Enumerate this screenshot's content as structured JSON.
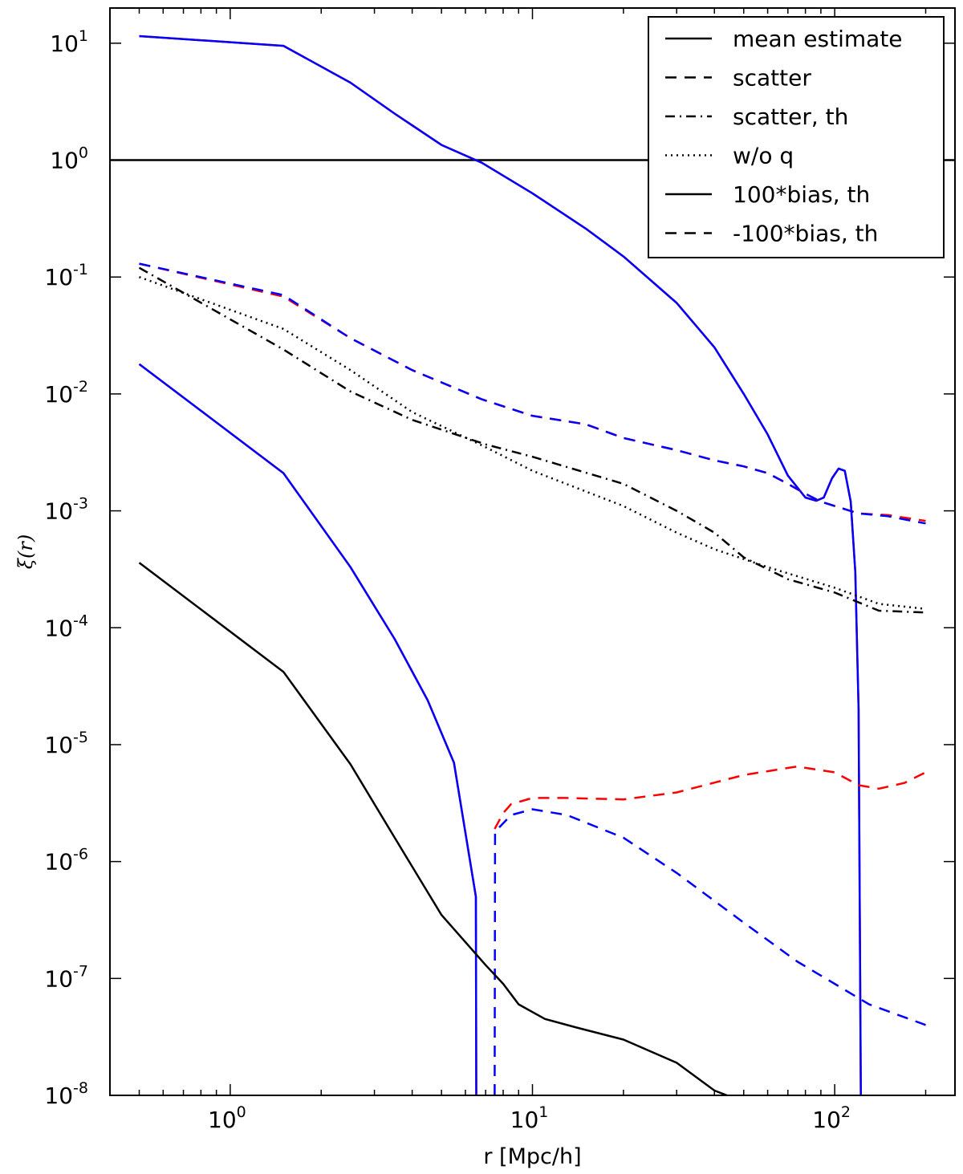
{
  "chart_data": {
    "type": "line",
    "title": "",
    "xlabel": "r [Mpc/h]",
    "ylabel": "ξ(r)",
    "xscale": "log",
    "yscale": "log",
    "xlim": [
      0.4,
      250
    ],
    "ylim": [
      1e-08,
      20
    ],
    "x_ticks": [
      {
        "value": 1,
        "base": "10",
        "exp": "0"
      },
      {
        "value": 10,
        "base": "10",
        "exp": "1"
      },
      {
        "value": 100,
        "base": "10",
        "exp": "2"
      }
    ],
    "y_ticks": [
      {
        "value": 10,
        "base": "10",
        "exp": "1"
      },
      {
        "value": 1,
        "base": "10",
        "exp": "0"
      },
      {
        "value": 0.1,
        "base": "10",
        "exp": "-1"
      },
      {
        "value": 0.01,
        "base": "10",
        "exp": "-2"
      },
      {
        "value": 0.001,
        "base": "10",
        "exp": "-3"
      },
      {
        "value": 0.0001,
        "base": "10",
        "exp": "-4"
      },
      {
        "value": 1e-05,
        "base": "10",
        "exp": "-5"
      },
      {
        "value": 1e-06,
        "base": "10",
        "exp": "-6"
      },
      {
        "value": 1e-07,
        "base": "10",
        "exp": "-7"
      },
      {
        "value": 1e-08,
        "base": "10",
        "exp": "-8"
      }
    ],
    "grid": false,
    "legend_position": "top-right",
    "legend": [
      {
        "label": "mean estimate",
        "style": "solid"
      },
      {
        "label": "scatter",
        "style": "dashed"
      },
      {
        "label": "scatter, th",
        "style": "dashdot"
      },
      {
        "label": "w/o q",
        "style": "dotted"
      },
      {
        "label": "100*bias, th",
        "style": "solid"
      },
      {
        "label": "-100*bias, th",
        "style": "dashed"
      }
    ],
    "colors": {
      "black": "#000000",
      "red": "#ff0000",
      "blue": "#0000ff"
    },
    "series": [
      {
        "key": "unity-line",
        "color": "#000000",
        "style": "solid",
        "points": [
          [
            0.4,
            1
          ],
          [
            250,
            1
          ]
        ]
      },
      {
        "key": "mean-estimate-red",
        "color": "#ff0000",
        "style": "solid",
        "points": [
          [
            0.5,
            11.5
          ],
          [
            1.5,
            9.5
          ],
          [
            2.5,
            4.6
          ],
          [
            3.5,
            2.5
          ],
          [
            5,
            1.35
          ],
          [
            6.8,
            0.95
          ],
          [
            10,
            0.52
          ],
          [
            15,
            0.26
          ],
          [
            20,
            0.15
          ],
          [
            30,
            0.06
          ],
          [
            40,
            0.025
          ],
          [
            50,
            0.01
          ],
          [
            60,
            0.0045
          ],
          [
            70,
            0.002
          ],
          [
            80,
            0.0013
          ],
          [
            87,
            0.00122
          ],
          [
            92,
            0.0013
          ],
          [
            98,
            0.0019
          ],
          [
            103,
            0.0023
          ],
          [
            108,
            0.0022
          ],
          [
            113,
            0.0012
          ],
          [
            117,
            0.0003
          ],
          [
            120,
            2e-05
          ],
          [
            122,
            1e-08
          ]
        ]
      },
      {
        "key": "mean-estimate-blue",
        "color": "#0000ff",
        "style": "solid",
        "points": [
          [
            0.5,
            11.5
          ],
          [
            1.5,
            9.5
          ],
          [
            2.5,
            4.6
          ],
          [
            3.5,
            2.5
          ],
          [
            5,
            1.35
          ],
          [
            6.8,
            0.95
          ],
          [
            10,
            0.52
          ],
          [
            15,
            0.26
          ],
          [
            20,
            0.15
          ],
          [
            30,
            0.06
          ],
          [
            40,
            0.025
          ],
          [
            50,
            0.01
          ],
          [
            60,
            0.0045
          ],
          [
            70,
            0.002
          ],
          [
            80,
            0.0013
          ],
          [
            87,
            0.00122
          ],
          [
            92,
            0.0013
          ],
          [
            98,
            0.0019
          ],
          [
            103,
            0.0023
          ],
          [
            108,
            0.0022
          ],
          [
            113,
            0.0012
          ],
          [
            117,
            0.0003
          ],
          [
            120,
            2e-05
          ],
          [
            122,
            1e-08
          ]
        ]
      },
      {
        "key": "scatter-red",
        "color": "#ff0000",
        "style": "dashed",
        "points": [
          [
            0.5,
            0.13
          ],
          [
            1.5,
            0.068
          ],
          [
            2.5,
            0.03
          ],
          [
            4,
            0.016
          ],
          [
            6.8,
            0.009
          ],
          [
            10,
            0.0065
          ],
          [
            15,
            0.0055
          ],
          [
            20,
            0.0042
          ],
          [
            30,
            0.0033
          ],
          [
            40,
            0.0027
          ],
          [
            50,
            0.0024
          ],
          [
            60,
            0.0021
          ],
          [
            70,
            0.0017
          ],
          [
            80,
            0.0014
          ],
          [
            90,
            0.0012
          ],
          [
            100,
            0.0011
          ],
          [
            120,
            0.00095
          ],
          [
            150,
            0.00092
          ],
          [
            200,
            0.00082
          ]
        ]
      },
      {
        "key": "scatter-blue",
        "color": "#0000ff",
        "style": "dashed",
        "points": [
          [
            0.5,
            0.13
          ],
          [
            1.5,
            0.07
          ],
          [
            2.5,
            0.03
          ],
          [
            4,
            0.016
          ],
          [
            6.8,
            0.009
          ],
          [
            10,
            0.0065
          ],
          [
            15,
            0.0055
          ],
          [
            20,
            0.0042
          ],
          [
            30,
            0.0033
          ],
          [
            40,
            0.0027
          ],
          [
            50,
            0.0024
          ],
          [
            60,
            0.0021
          ],
          [
            70,
            0.0017
          ],
          [
            80,
            0.0014
          ],
          [
            90,
            0.0012
          ],
          [
            100,
            0.0011
          ],
          [
            120,
            0.00095
          ],
          [
            150,
            0.0009
          ],
          [
            200,
            0.00078
          ]
        ]
      },
      {
        "key": "scatter-th",
        "color": "#000000",
        "style": "dashdot",
        "points": [
          [
            0.5,
            0.12
          ],
          [
            1.5,
            0.024
          ],
          [
            2.5,
            0.0105
          ],
          [
            4,
            0.006
          ],
          [
            7,
            0.0037
          ],
          [
            10,
            0.0029
          ],
          [
            20,
            0.0017
          ],
          [
            30,
            0.001
          ],
          [
            40,
            0.00065
          ],
          [
            50,
            0.0004
          ],
          [
            70,
            0.00026
          ],
          [
            100,
            0.0002
          ],
          [
            140,
            0.00014
          ],
          [
            200,
            0.000135
          ]
        ]
      },
      {
        "key": "without-q",
        "color": "#000000",
        "style": "dotted",
        "points": [
          [
            0.5,
            0.1
          ],
          [
            1.5,
            0.036
          ],
          [
            2.5,
            0.016
          ],
          [
            4,
            0.007
          ],
          [
            7,
            0.0035
          ],
          [
            10,
            0.0022
          ],
          [
            20,
            0.0011
          ],
          [
            30,
            0.00065
          ],
          [
            40,
            0.00047
          ],
          [
            60,
            0.00033
          ],
          [
            100,
            0.00022
          ],
          [
            140,
            0.00016
          ],
          [
            200,
            0.000145
          ]
        ]
      },
      {
        "key": "bias-th-red",
        "color": "#ff0000",
        "style": "solid",
        "points": [
          [
            0.5,
            0.018
          ],
          [
            1.5,
            0.0021
          ],
          [
            2.5,
            0.00033
          ],
          [
            3.5,
            8e-05
          ],
          [
            4.5,
            2.4e-05
          ],
          [
            5.5,
            7e-06
          ],
          [
            6.5,
            5e-07
          ],
          [
            6.52,
            1e-08
          ]
        ]
      },
      {
        "key": "bias-th-blue",
        "color": "#0000ff",
        "style": "solid",
        "points": [
          [
            0.5,
            0.018
          ],
          [
            1.5,
            0.0021
          ],
          [
            2.5,
            0.00033
          ],
          [
            3.5,
            8e-05
          ],
          [
            4.5,
            2.4e-05
          ],
          [
            5.5,
            7e-06
          ],
          [
            6.5,
            5e-07
          ],
          [
            6.52,
            1e-08
          ]
        ]
      },
      {
        "key": "neg-bias-th-red",
        "color": "#ff0000",
        "style": "dashed",
        "points": [
          [
            7.5,
            1.9e-06
          ],
          [
            8,
            2.6e-06
          ],
          [
            8.5,
            3.1e-06
          ],
          [
            10,
            3.5e-06
          ],
          [
            13,
            3.5e-06
          ],
          [
            20,
            3.4e-06
          ],
          [
            30,
            3.9e-06
          ],
          [
            50,
            5.5e-06
          ],
          [
            75,
            6.5e-06
          ],
          [
            100,
            5.8e-06
          ],
          [
            120,
            4.5e-06
          ],
          [
            140,
            4.2e-06
          ],
          [
            170,
            4.7e-06
          ],
          [
            200,
            5.8e-06
          ]
        ]
      },
      {
        "key": "neg-bias-th-blue",
        "color": "#0000ff",
        "style": "dashed",
        "points": [
          [
            7.5,
            1e-08
          ],
          [
            7.52,
            1.8e-06
          ],
          [
            8.5,
            2.5e-06
          ],
          [
            10,
            2.8e-06
          ],
          [
            13,
            2.5e-06
          ],
          [
            20,
            1.6e-06
          ],
          [
            30,
            8e-07
          ],
          [
            50,
            3e-07
          ],
          [
            75,
            1.4e-07
          ],
          [
            100,
            9e-08
          ],
          [
            130,
            6e-08
          ],
          [
            200,
            4e-08
          ]
        ]
      },
      {
        "key": "mean-estimate-black",
        "color": "#000000",
        "style": "solid",
        "points": [
          [
            0.5,
            0.00036
          ],
          [
            1.5,
            4.2e-05
          ],
          [
            2.5,
            6.8e-06
          ],
          [
            3.5,
            1.6e-06
          ],
          [
            5,
            3.5e-07
          ],
          [
            7,
            1.3e-07
          ],
          [
            8,
            9e-08
          ],
          [
            9,
            6e-08
          ],
          [
            11,
            4.5e-08
          ],
          [
            14,
            3.8e-08
          ],
          [
            20,
            3e-08
          ],
          [
            30,
            1.9e-08
          ],
          [
            40,
            1.1e-08
          ],
          [
            44,
            1e-08
          ]
        ]
      }
    ]
  }
}
